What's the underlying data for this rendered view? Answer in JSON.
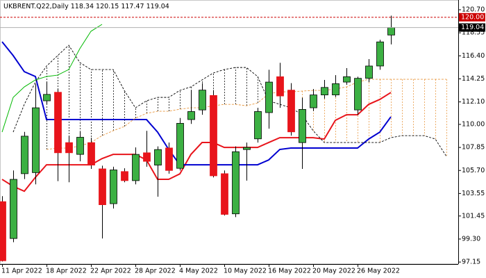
{
  "chart_data": {
    "type": "candlestick",
    "title": "UKBRENT.Q22,Daily",
    "categories": [
      "11 Apr 2022",
      null,
      null,
      null,
      "18 Apr 2022",
      null,
      null,
      null,
      "22 Apr 2022",
      null,
      null,
      null,
      "28 Apr 2022",
      null,
      null,
      null,
      "4 May 2022",
      null,
      null,
      null,
      "10 May 2022",
      null,
      null,
      null,
      "16 May 2022",
      null,
      null,
      null,
      "20 May 2022",
      null,
      null,
      null,
      "26 May 2022",
      null,
      null,
      null,
      null,
      null,
      null,
      null,
      null
    ],
    "open": [
      102.79,
      99.35,
      105.4,
      105.5,
      112.2,
      113.0,
      108.3,
      107.2,
      108.3,
      105.85,
      102.6,
      105.6,
      104.75,
      107.35,
      106.2,
      107.8,
      105.9,
      110.45,
      111.35,
      112.7,
      105.4,
      101.65,
      107.65,
      108.65,
      111.1,
      114.45,
      113.2,
      108.3,
      111.55,
      112.75,
      112.75,
      113.95,
      111.35,
      114.3,
      115.45,
      118.34,
      null,
      null,
      null,
      null,
      null
    ],
    "high": [
      103.3,
      105.7,
      109.3,
      113.8,
      113.95,
      113.3,
      108.95,
      109.3,
      108.75,
      106.15,
      106.05,
      105.9,
      107.85,
      109.4,
      107.95,
      108.3,
      110.6,
      113.2,
      113.85,
      113.2,
      105.7,
      107.95,
      108.3,
      111.55,
      115.1,
      115.75,
      113.85,
      112.5,
      113.3,
      114.15,
      114.6,
      115.25,
      114.45,
      116.1,
      117.9,
      120.15,
      null,
      null,
      null,
      null,
      null
    ],
    "low": [
      97.2,
      99.0,
      104.9,
      104.4,
      111.9,
      104.7,
      104.6,
      106.55,
      105.85,
      99.35,
      102.15,
      104.6,
      104.4,
      106.05,
      103.25,
      105.4,
      105.7,
      110.05,
      110.9,
      105.05,
      101.5,
      101.35,
      104.75,
      108.3,
      109.6,
      111.55,
      108.95,
      105.85,
      111.25,
      112.4,
      112.55,
      113.7,
      110.9,
      113.95,
      115.1,
      117.47,
      null,
      null,
      null,
      null,
      null
    ],
    "close": [
      97.27,
      104.87,
      108.9,
      111.55,
      112.8,
      107.35,
      107.35,
      108.8,
      106.2,
      102.5,
      105.75,
      104.75,
      107.2,
      106.55,
      107.65,
      105.7,
      110.1,
      111.2,
      113.2,
      105.2,
      101.6,
      107.45,
      107.85,
      111.2,
      113.95,
      112.65,
      109.3,
      111.4,
      112.75,
      113.45,
      113.8,
      114.45,
      114.3,
      115.45,
      117.7,
      119.04,
      null,
      null,
      null,
      null,
      null
    ],
    "up_color": "#3cb043",
    "down_color": "#e8141b",
    "series": [
      {
        "color": "#e8141b",
        "values": [
          104.87,
          104.22,
          103.76,
          105.06,
          106.23,
          106.23,
          106.23,
          106.23,
          106.23,
          106.81,
          107.2,
          107.2,
          107.2,
          106.68,
          104.87,
          104.87,
          105.38,
          107.2,
          108.31,
          108.31,
          107.85,
          107.85,
          107.85,
          107.85,
          108.31,
          108.76,
          108.76,
          108.76,
          108.76,
          108.63,
          110.38,
          110.9,
          110.9,
          111.87,
          112.33,
          112.98,
          null,
          null,
          null,
          null,
          null
        ]
      },
      {
        "color": "#0000d0",
        "values": [
          117.71,
          116.42,
          114.92,
          114.47,
          110.45,
          110.45,
          110.45,
          110.45,
          110.45,
          110.45,
          110.45,
          110.45,
          110.45,
          110.45,
          109.28,
          107.66,
          106.23,
          106.23,
          106.23,
          106.23,
          106.23,
          106.23,
          106.23,
          106.23,
          106.68,
          107.66,
          107.79,
          107.79,
          107.79,
          107.79,
          107.79,
          107.79,
          107.79,
          108.63,
          109.28,
          110.71,
          null,
          null,
          null,
          null,
          null
        ]
      },
      {
        "color": "#00b800",
        "values": [
          109.28,
          112.52,
          113.5,
          114.15,
          114.47,
          114.6,
          115.12,
          117.07,
          118.69,
          119.34,
          null,
          null,
          null,
          null,
          null,
          null,
          null,
          null,
          null,
          null,
          null,
          null,
          null,
          null,
          null,
          null,
          null,
          null,
          null,
          null,
          null,
          null,
          null,
          null,
          null,
          null,
          null,
          null,
          null,
          null,
          null
        ]
      },
      {
        "color": "#e8963c",
        "dashed": true,
        "values": [
          null,
          null,
          null,
          null,
          107.66,
          107.79,
          107.79,
          107.98,
          108.31,
          108.95,
          109.41,
          109.8,
          110.58,
          111.03,
          111.23,
          111.23,
          111.42,
          111.55,
          111.55,
          111.74,
          111.87,
          111.87,
          111.74,
          112.0,
          112.85,
          113.04,
          113.04,
          113.11,
          113.17,
          113.17,
          113.3,
          113.5,
          113.95,
          114.21,
          114.21,
          114.21,
          114.21,
          114.21,
          114.21,
          114.21,
          114.21
        ]
      },
      {
        "color": "#000000",
        "dashed": true,
        "values": [
          null,
          109.28,
          111.87,
          113.95,
          115.44,
          116.42,
          117.39,
          115.77,
          115.12,
          115.12,
          115.12,
          113.17,
          111.55,
          112.2,
          112.52,
          112.52,
          113.17,
          113.5,
          114.15,
          114.79,
          115.12,
          115.31,
          115.31,
          114.47,
          112.2,
          111.87,
          111.55,
          110.9,
          109.41,
          108.31,
          108.31,
          108.31,
          108.31,
          108.31,
          108.31,
          108.76,
          108.95,
          108.95,
          108.95,
          108.63,
          107.01
        ]
      }
    ],
    "cloud": [
      3,
      4
    ],
    "levels": [
      {
        "value": 120,
        "label": "120.00",
        "color": "#cc0000"
      }
    ],
    "ylim": [
      96.96,
      121.61
    ],
    "yticks": [
      {
        "value": 120.7,
        "label": "120.70"
      },
      118.55,
      {
        "value": 116.4,
        "label": "116.40"
      },
      114.25,
      {
        "value": 112.1,
        "label": "112.10"
      },
      {
        "value": 110,
        "label": "110.00"
      },
      107.85,
      {
        "value": 105.7,
        "label": "105.70"
      },
      103.55,
      101.45,
      {
        "value": 99.3,
        "label": "99.30"
      },
      97.15
    ]
  }
}
